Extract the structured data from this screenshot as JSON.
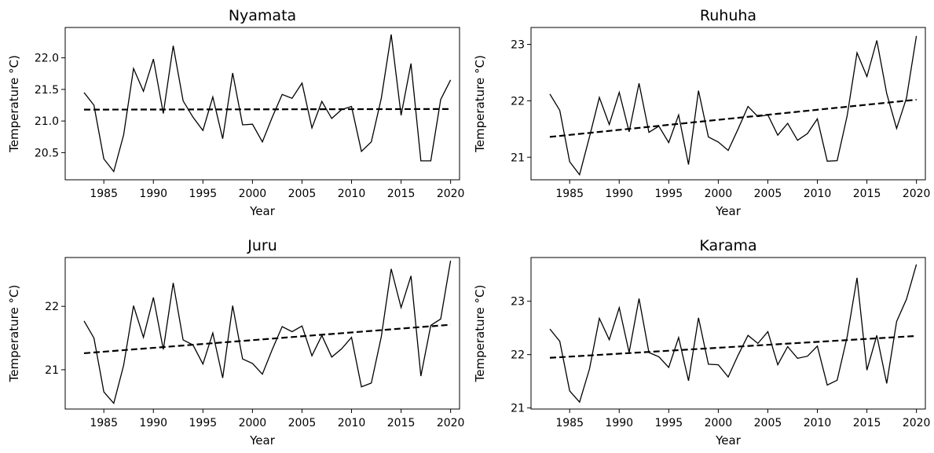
{
  "chart_data": [
    {
      "type": "line",
      "title": "Nyamata",
      "xlabel": "Year",
      "ylabel": "Temperature °C)",
      "xlim": [
        1981.1,
        2020.9
      ],
      "ylim": [
        20.07,
        22.48
      ],
      "xticks": [
        1985,
        1990,
        1995,
        2000,
        2005,
        2010,
        2015,
        2020
      ],
      "yticks": [
        20.5,
        21.0,
        21.5,
        22.0
      ],
      "ytick_labels": [
        "20.5",
        "21.0",
        "21.5",
        "22.0"
      ],
      "x": [
        1983,
        1984,
        1985,
        1986,
        1987,
        1988,
        1989,
        1990,
        1991,
        1992,
        1993,
        1994,
        1995,
        1996,
        1997,
        1998,
        1999,
        2000,
        2001,
        2002,
        2003,
        2004,
        2005,
        2006,
        2007,
        2008,
        2009,
        2010,
        2011,
        2012,
        2013,
        2014,
        2015,
        2016,
        2017,
        2018,
        2019,
        2020
      ],
      "series": [
        {
          "values": [
            21.45,
            21.25,
            20.4,
            20.2,
            20.78,
            21.83,
            21.47,
            21.98,
            21.12,
            22.19,
            21.32,
            21.06,
            20.85,
            21.38,
            20.72,
            21.76,
            20.94,
            20.95,
            20.67,
            21.06,
            21.42,
            21.36,
            21.6,
            20.89,
            21.31,
            21.04,
            21.18,
            21.23,
            20.52,
            20.67,
            21.36,
            22.37,
            21.09,
            21.91,
            20.37,
            20.37,
            21.34,
            21.65
          ]
        }
      ],
      "trend": {
        "x": [
          1983,
          2020
        ],
        "y": [
          21.18,
          21.19
        ]
      },
      "grid": false,
      "legend": false
    },
    {
      "type": "line",
      "title": "Ruhuha",
      "xlabel": "Year",
      "ylabel": "Temperature °C)",
      "xlim": [
        1981.1,
        2020.9
      ],
      "ylim": [
        20.6,
        23.3
      ],
      "xticks": [
        1985,
        1990,
        1995,
        2000,
        2005,
        2010,
        2015,
        2020
      ],
      "yticks": [
        21,
        22,
        23
      ],
      "ytick_labels": [
        "21",
        "22",
        "23"
      ],
      "x": [
        1983,
        1984,
        1985,
        1986,
        1987,
        1988,
        1989,
        1990,
        1991,
        1992,
        1993,
        1994,
        1995,
        1996,
        1997,
        1998,
        1999,
        2000,
        2001,
        2002,
        2003,
        2004,
        2005,
        2006,
        2007,
        2008,
        2009,
        2010,
        2011,
        2012,
        2013,
        2014,
        2015,
        2016,
        2017,
        2018,
        2019,
        2020
      ],
      "series": [
        {
          "values": [
            22.12,
            21.83,
            20.92,
            20.69,
            21.36,
            22.06,
            21.58,
            22.15,
            21.45,
            22.31,
            21.44,
            21.55,
            21.26,
            21.75,
            20.87,
            22.18,
            21.36,
            21.27,
            21.12,
            21.5,
            21.9,
            21.72,
            21.75,
            21.39,
            21.6,
            21.3,
            21.42,
            21.68,
            20.93,
            20.94,
            21.73,
            22.85,
            22.43,
            23.07,
            22.13,
            21.51,
            22.05,
            23.15
          ]
        }
      ],
      "trend": {
        "x": [
          1983,
          2020
        ],
        "y": [
          21.36,
          22.02
        ]
      },
      "grid": false,
      "legend": false
    },
    {
      "type": "line",
      "title": "Juru",
      "xlabel": "Year",
      "ylabel": "Temperature °C)",
      "xlim": [
        1981.1,
        2020.9
      ],
      "ylim": [
        20.38,
        22.77
      ],
      "xticks": [
        1985,
        1990,
        1995,
        2000,
        2005,
        2010,
        2015,
        2020
      ],
      "yticks": [
        21,
        22
      ],
      "ytick_labels": [
        "21",
        "22"
      ],
      "x": [
        1983,
        1984,
        1985,
        1986,
        1987,
        1988,
        1989,
        1990,
        1991,
        1992,
        1993,
        1994,
        1995,
        1996,
        1997,
        1998,
        1999,
        2000,
        2001,
        2002,
        2003,
        2004,
        2005,
        2006,
        2007,
        2008,
        2009,
        2010,
        2011,
        2012,
        2013,
        2014,
        2015,
        2016,
        2017,
        2018,
        2019,
        2020
      ],
      "series": [
        {
          "values": [
            21.77,
            21.5,
            20.65,
            20.47,
            21.07,
            22.01,
            21.51,
            22.14,
            21.32,
            22.37,
            21.47,
            21.39,
            21.09,
            21.58,
            20.87,
            22.01,
            21.17,
            21.1,
            20.93,
            21.32,
            21.68,
            21.6,
            21.69,
            21.22,
            21.54,
            21.2,
            21.33,
            21.51,
            20.73,
            20.79,
            21.52,
            22.59,
            21.98,
            22.48,
            20.9,
            21.7,
            21.8,
            22.72
          ]
        }
      ],
      "trend": {
        "x": [
          1983,
          2020
        ],
        "y": [
          21.26,
          21.71
        ]
      },
      "grid": false,
      "legend": false
    },
    {
      "type": "line",
      "title": "Karama",
      "xlabel": "Year",
      "ylabel": "Temperature °C)",
      "xlim": [
        1981.1,
        2020.9
      ],
      "ylim": [
        20.98,
        23.82
      ],
      "xticks": [
        1985,
        1990,
        1995,
        2000,
        2005,
        2010,
        2015,
        2020
      ],
      "yticks": [
        21,
        22,
        23
      ],
      "ytick_labels": [
        "21",
        "22",
        "23"
      ],
      "x": [
        1983,
        1984,
        1985,
        1986,
        1987,
        1988,
        1989,
        1990,
        1991,
        1992,
        1993,
        1994,
        1995,
        1996,
        1997,
        1998,
        1999,
        2000,
        2001,
        2002,
        2003,
        2004,
        2005,
        2006,
        2007,
        2008,
        2009,
        2010,
        2011,
        2012,
        2013,
        2014,
        2015,
        2016,
        2017,
        2018,
        2019,
        2020
      ],
      "series": [
        {
          "values": [
            22.48,
            22.25,
            21.32,
            21.11,
            21.73,
            22.68,
            22.28,
            22.88,
            22.04,
            23.05,
            22.04,
            21.96,
            21.76,
            22.32,
            21.51,
            22.69,
            21.82,
            21.81,
            21.58,
            21.99,
            22.36,
            22.21,
            22.43,
            21.81,
            22.15,
            21.93,
            21.97,
            22.16,
            21.43,
            21.52,
            22.33,
            23.44,
            21.71,
            22.36,
            21.46,
            22.62,
            23.04,
            23.69
          ]
        }
      ],
      "trend": {
        "x": [
          1983,
          2020
        ],
        "y": [
          21.94,
          22.35
        ]
      },
      "grid": false,
      "legend": false
    }
  ]
}
